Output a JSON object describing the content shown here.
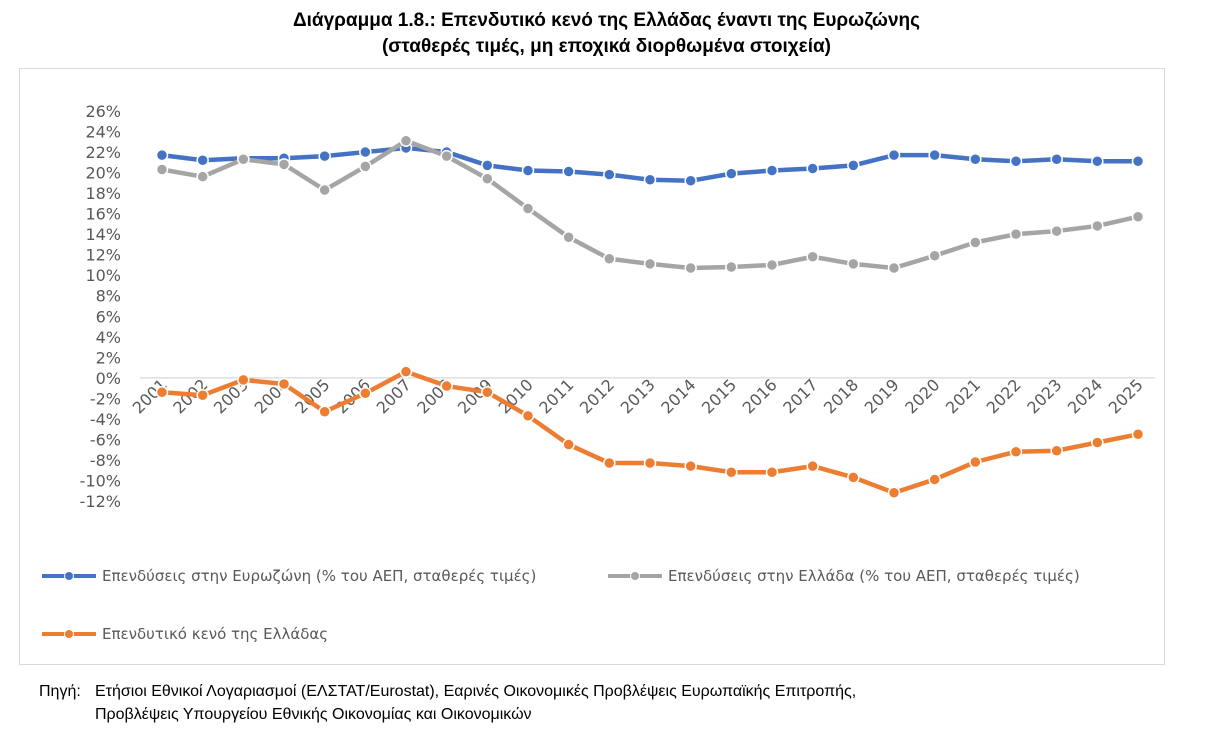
{
  "title_line1": "Διάγραμμα 1.8.: Επενδυτικό κενό της Ελλάδας έναντι της Ευρωζώνης",
  "title_line2": "(σταθερές τιμές, μη εποχικά διορθωμένα στοιχεία)",
  "source_label": "Πηγή:",
  "source_line1": "Ετήσιοι Εθνικοί Λογαριασμοί (ΕΛΣΤΑΤ/Eurostat), Εαρινές Οικονομικές Προβλέψεις Ευρωπαϊκής Επιτροπής,",
  "source_line2": "Προβλέψεις Υπουργείου Εθνικής Οικονομίας και Οικονομικών",
  "chart_data": {
    "type": "line",
    "categories": [
      "2001",
      "2002",
      "2003",
      "2004",
      "2005",
      "2006",
      "2007",
      "2008",
      "2009",
      "2010",
      "2011",
      "2012",
      "2013",
      "2014",
      "2015",
      "2016",
      "2017",
      "2018",
      "2019",
      "2020",
      "2021",
      "2022",
      "2023",
      "2024",
      "2025"
    ],
    "y_ticks": [
      "26%",
      "24%",
      "22%",
      "20%",
      "18%",
      "16%",
      "14%",
      "12%",
      "10%",
      "8%",
      "6%",
      "4%",
      "2%",
      "0%",
      "-2%",
      "-4%",
      "-6%",
      "-8%",
      "-10%",
      "-12%"
    ],
    "ylim": [
      -12,
      26
    ],
    "grid": false,
    "legend_position": "bottom",
    "series": [
      {
        "name": "Επενδύσεις στην Ευρωζώνη (% του ΑΕΠ, σταθερές τιμές)",
        "color": "#4472c4",
        "values": [
          21.7,
          21.2,
          21.4,
          21.4,
          21.6,
          22.0,
          22.4,
          22.0,
          20.7,
          20.2,
          20.1,
          19.8,
          19.3,
          19.2,
          19.9,
          20.2,
          20.4,
          20.7,
          21.7,
          21.7,
          21.3,
          21.1,
          21.3,
          21.1,
          21.1
        ]
      },
      {
        "name": "Επενδύσεις στην Ελλάδα (% του ΑΕΠ, σταθερές τιμές)",
        "color": "#a5a5a5",
        "values": [
          20.3,
          19.6,
          21.3,
          20.8,
          18.3,
          20.6,
          23.1,
          21.6,
          19.4,
          16.5,
          13.7,
          11.6,
          11.1,
          10.7,
          10.8,
          11.0,
          11.8,
          11.1,
          10.7,
          11.9,
          13.2,
          14.0,
          14.3,
          14.8,
          15.7
        ]
      },
      {
        "name": "Επενδυτικό κενό της Ελλάδας",
        "color": "#ed7d31",
        "values": [
          -1.4,
          -1.7,
          -0.2,
          -0.6,
          -3.3,
          -1.5,
          0.6,
          -0.8,
          -1.4,
          -3.7,
          -6.5,
          -8.3,
          -8.3,
          -8.6,
          -9.2,
          -9.2,
          -8.6,
          -9.7,
          -11.2,
          -9.9,
          -8.2,
          -7.2,
          -7.1,
          -6.3,
          -5.5
        ]
      }
    ]
  }
}
